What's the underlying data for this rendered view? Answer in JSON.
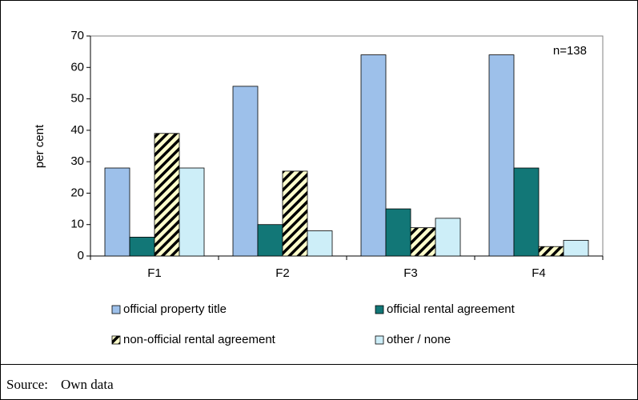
{
  "chart_data": {
    "type": "bar",
    "categories": [
      "F1",
      "F2",
      "F3",
      "F4"
    ],
    "series": [
      {
        "name": "official property title",
        "color": "#9dc0ea",
        "values": [
          28,
          54,
          64,
          64
        ]
      },
      {
        "name": "official rental agreement",
        "color": "#127777",
        "values": [
          6,
          10,
          15,
          28
        ]
      },
      {
        "name": "non-official rental agreement",
        "color": "#ffffcc",
        "hatch": true,
        "values": [
          39,
          27,
          9,
          3
        ]
      },
      {
        "name": "other / none",
        "color": "#cdeef8",
        "values": [
          28,
          8,
          12,
          5
        ]
      }
    ],
    "ylabel": "per cent",
    "annotation": "n=138",
    "ylim": [
      0,
      70
    ],
    "yticks": [
      0,
      10,
      20,
      30,
      40,
      50,
      60,
      70
    ],
    "legend": "bottom"
  },
  "source": {
    "label": "Source:",
    "text": "Own data"
  }
}
